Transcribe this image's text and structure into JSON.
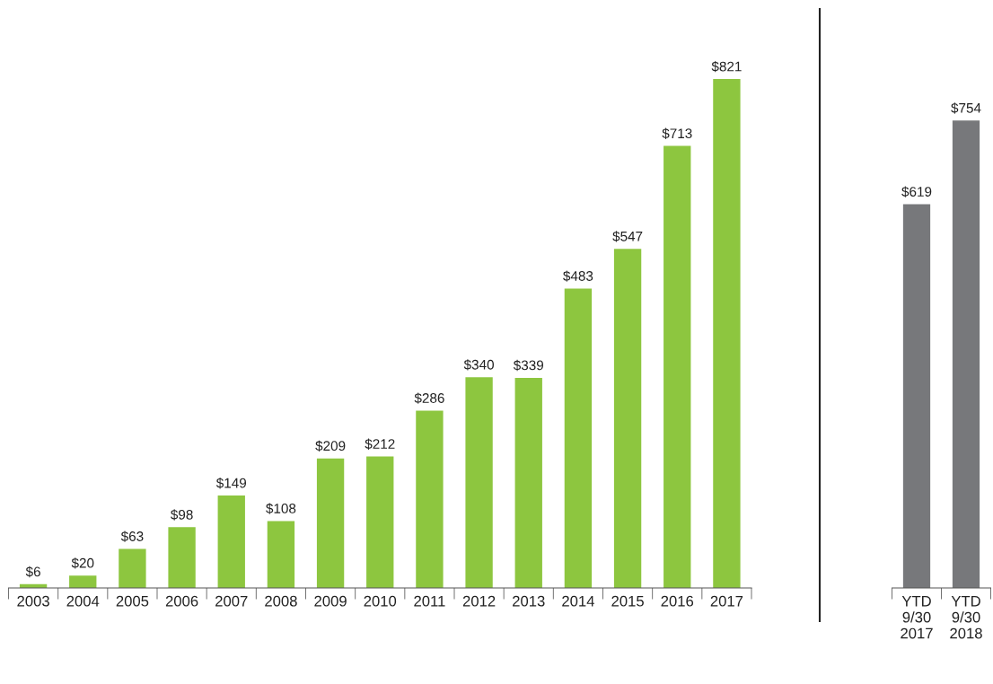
{
  "chart_data": [
    {
      "type": "bar",
      "categories": [
        "2003",
        "2004",
        "2005",
        "2006",
        "2007",
        "2008",
        "2009",
        "2010",
        "2011",
        "2012",
        "2013",
        "2014",
        "2015",
        "2016",
        "2017"
      ],
      "values": [
        6,
        20,
        63,
        98,
        149,
        108,
        209,
        212,
        286,
        340,
        339,
        483,
        547,
        713,
        821
      ],
      "value_labels": [
        "$6",
        "$20",
        "$63",
        "$98",
        "$149",
        "$108",
        "$209",
        "$212",
        "$286",
        "$340",
        "$339",
        "$483",
        "$547",
        "$713",
        "$821"
      ],
      "color": "#8dc63f",
      "grid": false,
      "legend": false,
      "tick_labels": "x"
    },
    {
      "type": "bar",
      "categories": [
        "YTD\n9/30\n2017",
        "YTD\n9/30\n2018"
      ],
      "values": [
        619,
        754
      ],
      "value_labels": [
        "$619",
        "$754"
      ],
      "color": "#77787b",
      "grid": false,
      "legend": false,
      "tick_labels": "x"
    }
  ]
}
